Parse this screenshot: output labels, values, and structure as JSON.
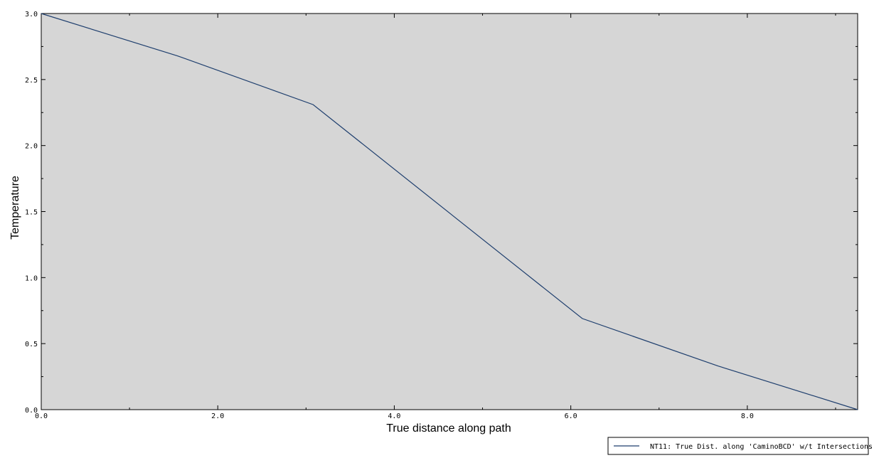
{
  "chart_data": {
    "type": "line",
    "xlabel": "True distance along path",
    "ylabel": "Temperature",
    "xlim": [
      0,
      9.25
    ],
    "ylim": [
      0,
      3.0
    ],
    "x_ticks": [
      0,
      2,
      4,
      6,
      8
    ],
    "x_tick_labels": [
      "0.0",
      "2.0",
      "4.0",
      "6.0",
      "8.0"
    ],
    "y_ticks": [
      0,
      0.5,
      1.0,
      1.5,
      2.0,
      2.5,
      3.0
    ],
    "y_tick_labels": [
      "0.0",
      "0.5",
      "1.0",
      "1.5",
      "2.0",
      "2.5",
      "3.0"
    ],
    "grid": false,
    "plot_background": "#d6d6d6",
    "legend_position": "bottom-right",
    "series": [
      {
        "name": "NT11: True Dist. along 'CaminoBCD' w/t Intersections",
        "color": "#1f3f6e",
        "x": [
          0,
          1.54,
          3.08,
          6.13,
          7.67,
          9.25
        ],
        "y": [
          3.0,
          2.68,
          2.31,
          0.69,
          0.33,
          0.0
        ]
      }
    ]
  }
}
